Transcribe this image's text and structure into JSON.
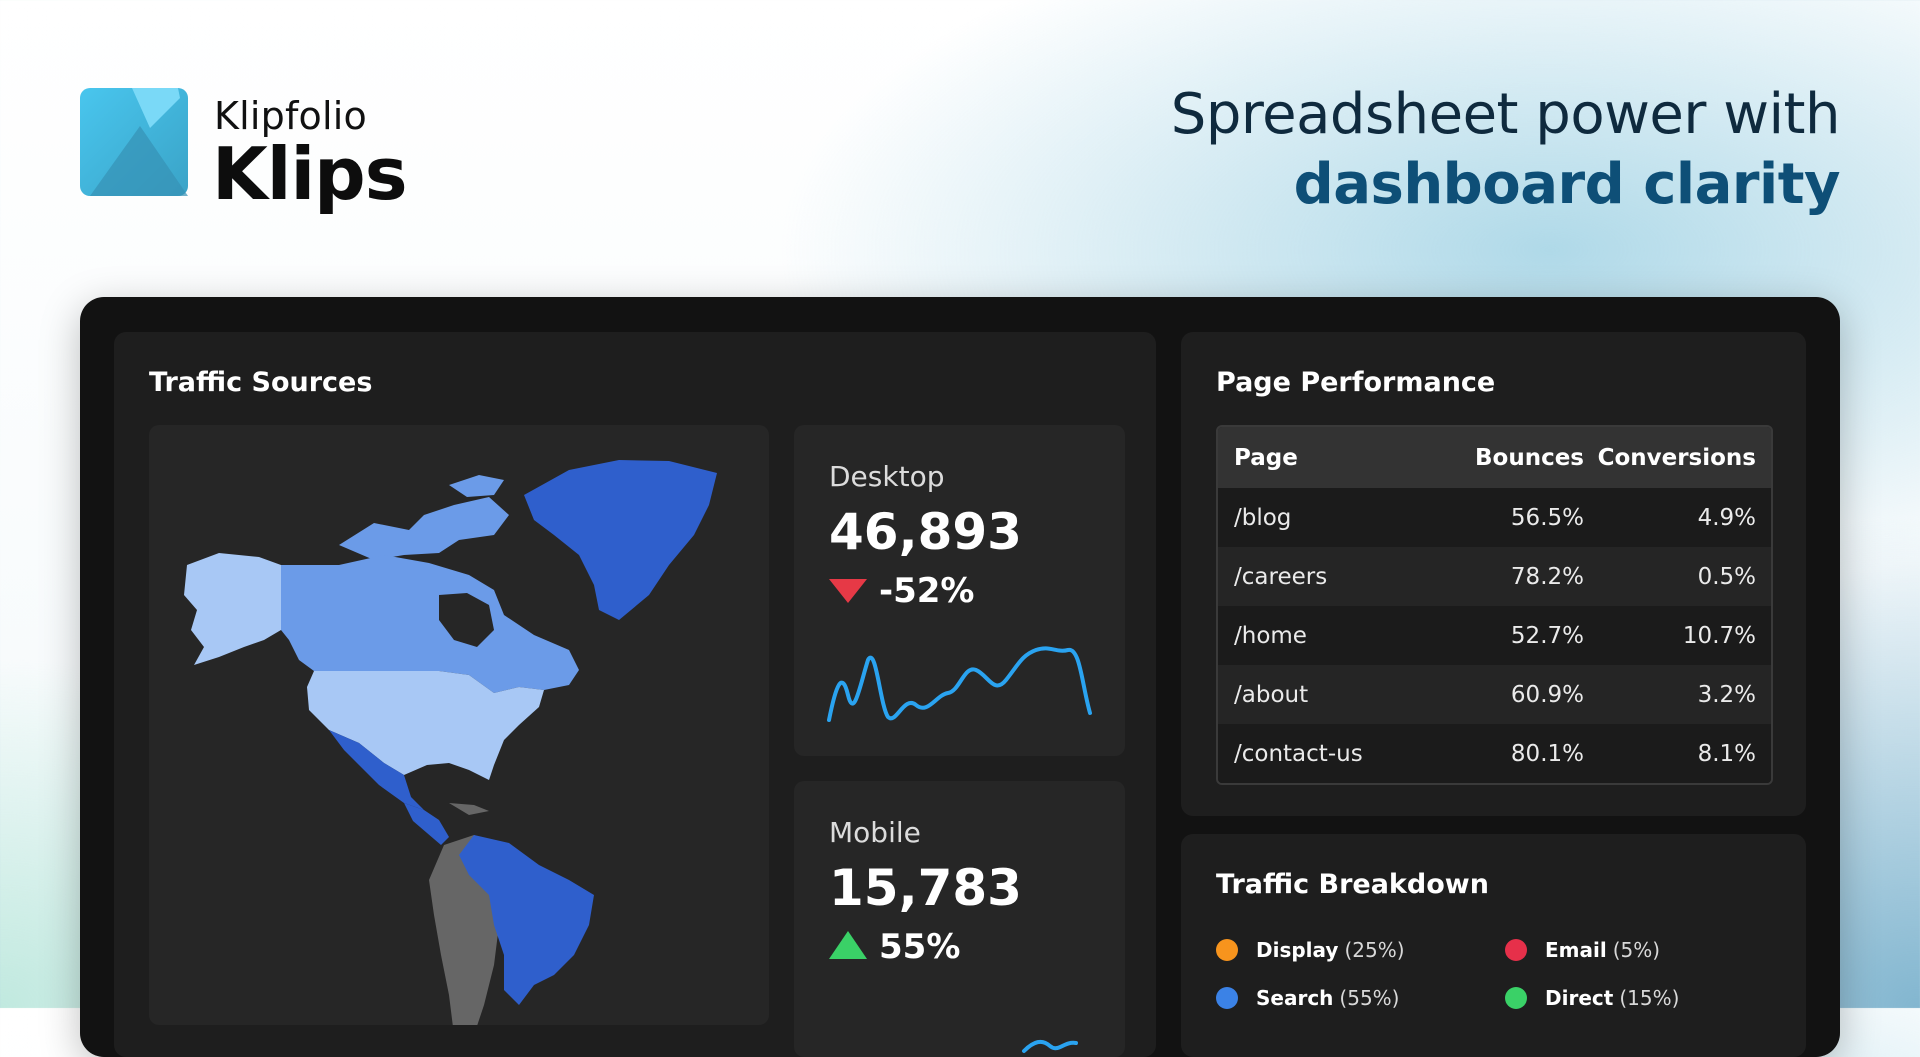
{
  "brand": {
    "company": "Klipfolio",
    "product": "Klips"
  },
  "tagline": {
    "line1": "Spreadsheet power with",
    "line2": "dashboard clarity"
  },
  "traffic_sources": {
    "title": "Traffic Sources",
    "desktop": {
      "label": "Desktop",
      "value": "46,893",
      "change": "-52%",
      "direction": "down"
    },
    "mobile": {
      "label": "Mobile",
      "value": "15,783",
      "change": "55%",
      "direction": "up"
    }
  },
  "page_performance": {
    "title": "Page Performance",
    "columns": [
      "Page",
      "Bounces",
      "Conversions"
    ],
    "rows": [
      [
        "/blog",
        "56.5%",
        "4.9%"
      ],
      [
        "/careers",
        "78.2%",
        "0.5%"
      ],
      [
        "/home",
        "52.7%",
        "10.7%"
      ],
      [
        "/about",
        "60.9%",
        "3.2%"
      ],
      [
        "/contact-us",
        "80.1%",
        "8.1%"
      ]
    ]
  },
  "traffic_breakdown": {
    "title": "Traffic Breakdown",
    "items": [
      {
        "name": "Display",
        "share": "(25%)",
        "color": "#f7941d"
      },
      {
        "name": "Email",
        "share": "(5%)",
        "color": "#e6304a"
      },
      {
        "name": "Search",
        "share": "(55%)",
        "color": "#3b82e6"
      },
      {
        "name": "Direct",
        "share": "(15%)",
        "color": "#3ad167"
      }
    ]
  },
  "colors": {
    "tagline_dark": "#0f2a3e",
    "tagline_accent": "#0e4f77",
    "map_light": "#a8c8f5",
    "map_mid": "#6b9be8",
    "map_dark": "#2f5fcc",
    "map_gray": "#666666",
    "sparkline": "#2aa3f0"
  }
}
